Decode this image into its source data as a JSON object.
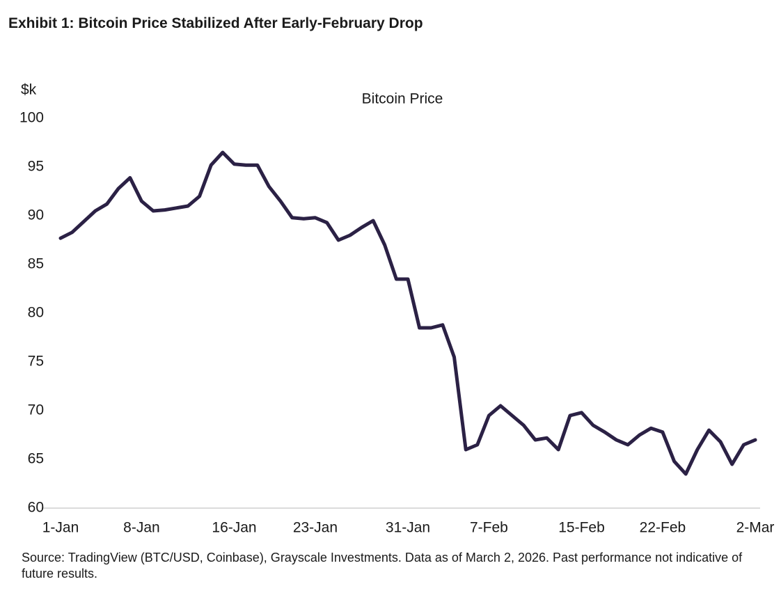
{
  "heading": "Exhibit 1: Bitcoin Price Stabilized After Early-February Drop",
  "source": "Source: TradingView (BTC/USD, Coinbase), Grayscale Investments. Data as of March 2, 2026. Past performance not indicative of future results.",
  "chart_data": {
    "type": "line",
    "title": "Bitcoin Price",
    "ylabel": "$k",
    "color": "#2b2145",
    "categories": [
      "1-Jan",
      null,
      null,
      null,
      null,
      null,
      null,
      "8-Jan",
      null,
      null,
      null,
      null,
      null,
      null,
      null,
      "16-Jan",
      null,
      null,
      null,
      null,
      null,
      null,
      "23-Jan",
      null,
      null,
      null,
      null,
      null,
      null,
      null,
      "31-Jan",
      null,
      null,
      null,
      null,
      null,
      null,
      "7-Feb",
      null,
      null,
      null,
      null,
      null,
      null,
      null,
      "15-Feb",
      null,
      null,
      null,
      null,
      null,
      null,
      "22-Feb",
      null,
      null,
      null,
      null,
      null,
      null,
      null,
      "2-Mar"
    ],
    "values": [
      87.7,
      88.3,
      89.4,
      90.5,
      91.2,
      92.8,
      93.9,
      91.5,
      90.5,
      90.6,
      90.8,
      91.0,
      92.0,
      95.2,
      96.5,
      95.3,
      95.2,
      95.2,
      93.0,
      91.5,
      89.8,
      89.7,
      89.8,
      89.3,
      87.5,
      88.0,
      88.8,
      89.5,
      87.0,
      83.5,
      83.5,
      78.5,
      78.5,
      78.8,
      75.5,
      66.0,
      66.5,
      69.5,
      70.5,
      69.5,
      68.5,
      67.0,
      67.2,
      66.0,
      69.5,
      69.8,
      68.5,
      67.8,
      67.0,
      66.5,
      67.5,
      68.2,
      67.8,
      64.8,
      63.5,
      66.0,
      68.0,
      66.8,
      64.5,
      66.5,
      67.0
    ],
    "ylim": [
      60,
      100
    ],
    "yticks": [
      60,
      65,
      70,
      75,
      80,
      85,
      90,
      95,
      100
    ],
    "grid": false
  }
}
